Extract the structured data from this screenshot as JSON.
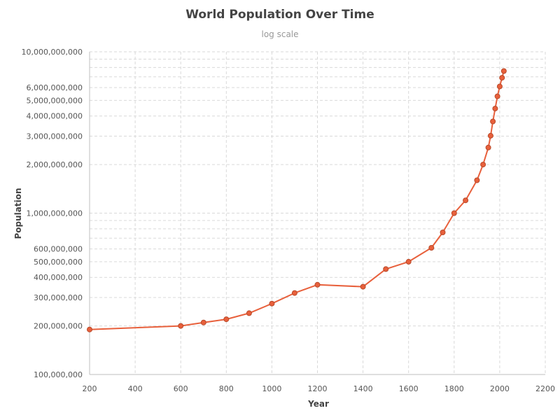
{
  "chart_data": {
    "type": "line",
    "title": "World Population Over Time",
    "subtitle": "log scale",
    "xlabel": "Year",
    "ylabel": "Population",
    "xlim": [
      200,
      2200
    ],
    "ylim": [
      100000000,
      10000000000
    ],
    "y_scale": "log",
    "grid": true,
    "x_ticks": [
      200,
      400,
      600,
      800,
      1000,
      1200,
      1400,
      1600,
      1800,
      2000,
      2200
    ],
    "y_ticks": [
      {
        "value": 100000000,
        "label": "100,000,000"
      },
      {
        "value": 200000000,
        "label": "200,000,000"
      },
      {
        "value": 300000000,
        "label": "300,000,000"
      },
      {
        "value": 400000000,
        "label": "400,000,000"
      },
      {
        "value": 500000000,
        "label": "500,000,000"
      },
      {
        "value": 600000000,
        "label": "600,000,000"
      },
      {
        "value": 1000000000,
        "label": "1,000,000,000"
      },
      {
        "value": 2000000000,
        "label": "2,000,000,000"
      },
      {
        "value": 3000000000,
        "label": "3,000,000,000"
      },
      {
        "value": 4000000000,
        "label": "4,000,000,000"
      },
      {
        "value": 5000000000,
        "label": "5,000,000,000"
      },
      {
        "value": 6000000000,
        "label": "6,000,000,000"
      },
      {
        "value": 10000000000,
        "label": "10,000,000,000"
      }
    ],
    "y_minor_grid": [
      700000000,
      800000000,
      900000000,
      7000000000,
      8000000000,
      9000000000
    ],
    "series": [
      {
        "color": "#e8603c",
        "x": [
          200,
          600,
          700,
          800,
          900,
          1000,
          1100,
          1200,
          1400,
          1500,
          1600,
          1700,
          1750,
          1800,
          1850,
          1900,
          1927,
          1950,
          1960,
          1970,
          1980,
          1990,
          2000,
          2010,
          2018
        ],
        "y": [
          190000000,
          200000000,
          210000000,
          220000000,
          240000000,
          275000000,
          320000000,
          360000000,
          350000000,
          450000000,
          500000000,
          610000000,
          760000000,
          1000000000,
          1200000000,
          1600000000,
          2000000000,
          2550000000,
          3020000000,
          3700000000,
          4450000000,
          5300000000,
          6100000000,
          6900000000,
          7600000000
        ]
      }
    ]
  }
}
